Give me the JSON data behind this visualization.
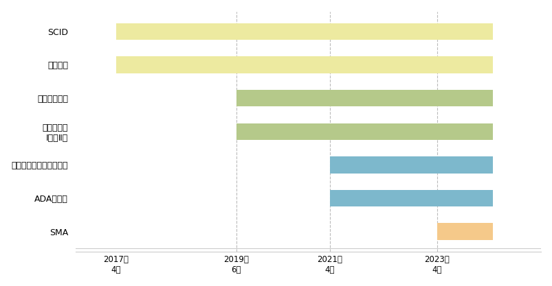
{
  "diseases": [
    "SMA",
    "ADA欠損症",
    "副腎白質ジストロフィー",
    "ムコ多糖症\nⅠ型・Ⅱ型",
    "ファブリー病",
    "ポンペ病",
    "SCID"
  ],
  "bar_starts": [
    2023.25,
    2021.25,
    2021.25,
    2019.5,
    2019.5,
    2017.25,
    2017.25
  ],
  "bar_ends": [
    2024.3,
    2024.3,
    2024.3,
    2024.3,
    2024.3,
    2024.3,
    2024.3
  ],
  "bar_colors": [
    "#f5c98a",
    "#7db8cc",
    "#7db8cc",
    "#b5c98a",
    "#b5c98a",
    "#edeaa0",
    "#edeaa0"
  ],
  "xmin": 2016.5,
  "xmax": 2025.2,
  "vlines": [
    2017.25,
    2019.5,
    2021.25,
    2023.25
  ],
  "xtick_positions": [
    2017.25,
    2019.5,
    2021.25,
    2023.25
  ],
  "xtick_labels": [
    "2017年\n4月",
    "2019年\n6月",
    "2021年\n4月",
    "2023年\n4月"
  ],
  "bar_height": 0.5,
  "background_color": "#ffffff",
  "font_size_labels": 9,
  "font_size_ticks": 8.5
}
